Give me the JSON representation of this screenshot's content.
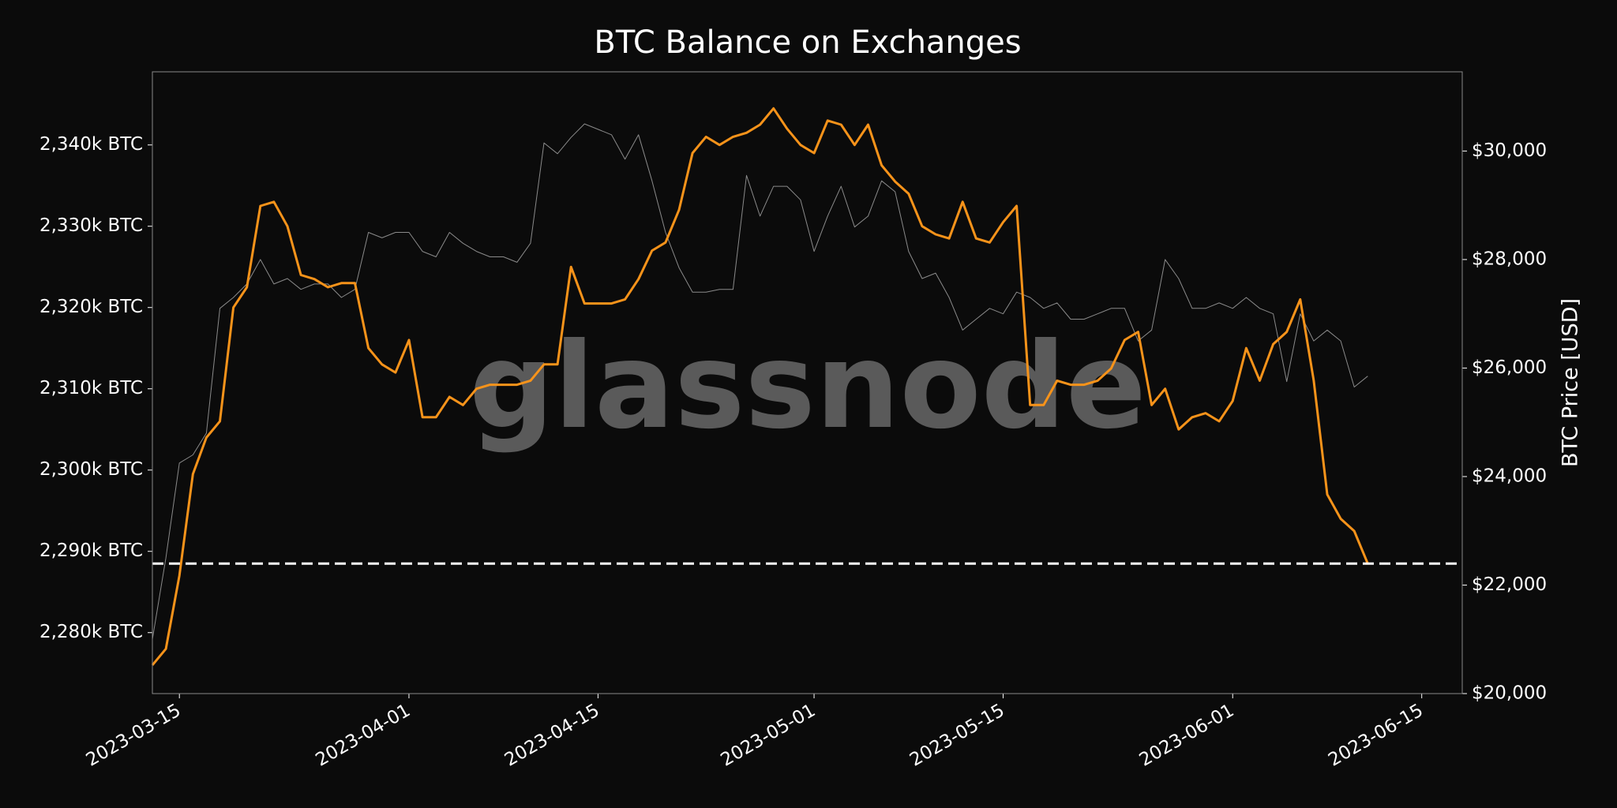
{
  "chart_data": {
    "type": "line",
    "title": "BTC Balance on Exchanges",
    "watermark": "glassnode",
    "y2label": "BTC Price [USD]",
    "x": [
      "2023-03-13",
      "2023-03-14",
      "2023-03-15",
      "2023-03-16",
      "2023-03-17",
      "2023-03-18",
      "2023-03-19",
      "2023-03-20",
      "2023-03-21",
      "2023-03-22",
      "2023-03-23",
      "2023-03-24",
      "2023-03-25",
      "2023-03-26",
      "2023-03-27",
      "2023-03-28",
      "2023-03-29",
      "2023-03-30",
      "2023-03-31",
      "2023-04-01",
      "2023-04-02",
      "2023-04-03",
      "2023-04-04",
      "2023-04-05",
      "2023-04-06",
      "2023-04-07",
      "2023-04-08",
      "2023-04-09",
      "2023-04-10",
      "2023-04-11",
      "2023-04-12",
      "2023-04-13",
      "2023-04-14",
      "2023-04-15",
      "2023-04-16",
      "2023-04-17",
      "2023-04-18",
      "2023-04-19",
      "2023-04-20",
      "2023-04-21",
      "2023-04-22",
      "2023-04-23",
      "2023-04-24",
      "2023-04-25",
      "2023-04-26",
      "2023-04-27",
      "2023-04-28",
      "2023-04-29",
      "2023-04-30",
      "2023-05-01",
      "2023-05-02",
      "2023-05-03",
      "2023-05-04",
      "2023-05-05",
      "2023-05-06",
      "2023-05-07",
      "2023-05-08",
      "2023-05-09",
      "2023-05-10",
      "2023-05-11",
      "2023-05-12",
      "2023-05-13",
      "2023-05-14",
      "2023-05-15",
      "2023-05-16",
      "2023-05-17",
      "2023-05-18",
      "2023-05-19",
      "2023-05-20",
      "2023-05-21",
      "2023-05-22",
      "2023-05-23",
      "2023-05-24",
      "2023-05-25",
      "2023-05-26",
      "2023-05-27",
      "2023-05-28",
      "2023-05-29",
      "2023-05-30",
      "2023-05-31",
      "2023-06-01",
      "2023-06-02",
      "2023-06-03",
      "2023-06-04",
      "2023-06-05",
      "2023-06-06",
      "2023-06-07",
      "2023-06-08",
      "2023-06-09",
      "2023-06-10",
      "2023-06-11"
    ],
    "series": [
      {
        "name": "BTC Price",
        "color": "#8a8a8a",
        "axis": "y2",
        "width": 1,
        "values": [
          21000,
          22500,
          24250,
          24400,
          24800,
          27100,
          27300,
          27550,
          28000,
          27550,
          27650,
          27450,
          27550,
          27550,
          27300,
          27450,
          28500,
          28400,
          28500,
          28500,
          28150,
          28050,
          28500,
          28300,
          28150,
          28050,
          28050,
          27950,
          28300,
          30150,
          29950,
          30250,
          30500,
          30400,
          30300,
          29850,
          30300,
          29450,
          28500,
          27850,
          27400,
          27400,
          27450,
          27450,
          29550,
          28800,
          29350,
          29350,
          29100,
          28150,
          28800,
          29350,
          28600,
          28800,
          29450,
          29250,
          28150,
          27650,
          27750,
          27300,
          26700,
          26900,
          27100,
          27000,
          27400,
          27300,
          27100,
          27200,
          26900,
          26900,
          27000,
          27100,
          27100,
          26500,
          26700,
          28000,
          27650,
          27100,
          27100,
          27200,
          27100,
          27300,
          27100,
          27000,
          25750,
          27000,
          26500,
          26700,
          26500,
          25650,
          25850
        ]
      },
      {
        "name": "BTC Balance",
        "color": "#f7931a",
        "axis": "y",
        "width": 3,
        "values": [
          2276000,
          2278000,
          2287000,
          2299500,
          2304000,
          2306000,
          2320000,
          2322500,
          2332500,
          2333000,
          2330000,
          2324000,
          2323500,
          2322500,
          2323000,
          2323000,
          2315000,
          2313000,
          2312000,
          2316000,
          2306500,
          2306500,
          2309000,
          2308000,
          2310000,
          2310500,
          2310500,
          2310500,
          2311000,
          2313000,
          2313000,
          2325000,
          2320500,
          2320500,
          2320500,
          2321000,
          2323500,
          2327000,
          2328000,
          2332000,
          2339000,
          2341000,
          2340000,
          2341000,
          2341500,
          2342500,
          2344500,
          2342000,
          2340000,
          2339000,
          2343000,
          2342500,
          2340000,
          2342500,
          2337500,
          2335500,
          2334000,
          2330000,
          2329000,
          2328500,
          2333000,
          2328500,
          2328000,
          2330500,
          2332500,
          2308000,
          2308000,
          2311000,
          2310500,
          2310500,
          2311000,
          2312500,
          2316000,
          2317000,
          2308000,
          2310000,
          2305000,
          2306500,
          2307000,
          2306000,
          2308500,
          2315000,
          2311000,
          2315500,
          2317000,
          2321000,
          2311000,
          2297000,
          2294000,
          2292500,
          2288500
        ]
      }
    ],
    "hline": 2288500,
    "hline_color": "#ffffff",
    "xlim": [
      "2023-03-13",
      "2023-06-18"
    ],
    "xticks": [
      "2023-03-15",
      "2023-04-01",
      "2023-04-15",
      "2023-05-01",
      "2023-05-15",
      "2023-06-01",
      "2023-06-15"
    ],
    "ylim": [
      2272500,
      2349000
    ],
    "yticks": [
      {
        "value": 2280000,
        "label": "2,280k BTC"
      },
      {
        "value": 2290000,
        "label": "2,290k BTC"
      },
      {
        "value": 2300000,
        "label": "2,300k BTC"
      },
      {
        "value": 2310000,
        "label": "2,310k BTC"
      },
      {
        "value": 2320000,
        "label": "2,320k BTC"
      },
      {
        "value": 2330000,
        "label": "2,330k BTC"
      },
      {
        "value": 2340000,
        "label": "2,340k BTC"
      }
    ],
    "y2lim": [
      20000,
      31460
    ],
    "y2ticks": [
      {
        "value": 20000,
        "label": "$20,000"
      },
      {
        "value": 22000,
        "label": "$22,000"
      },
      {
        "value": 24000,
        "label": "$24,000"
      },
      {
        "value": 26000,
        "label": "$26,000"
      },
      {
        "value": 28000,
        "label": "$28,000"
      },
      {
        "value": 30000,
        "label": "$30,000"
      }
    ]
  }
}
